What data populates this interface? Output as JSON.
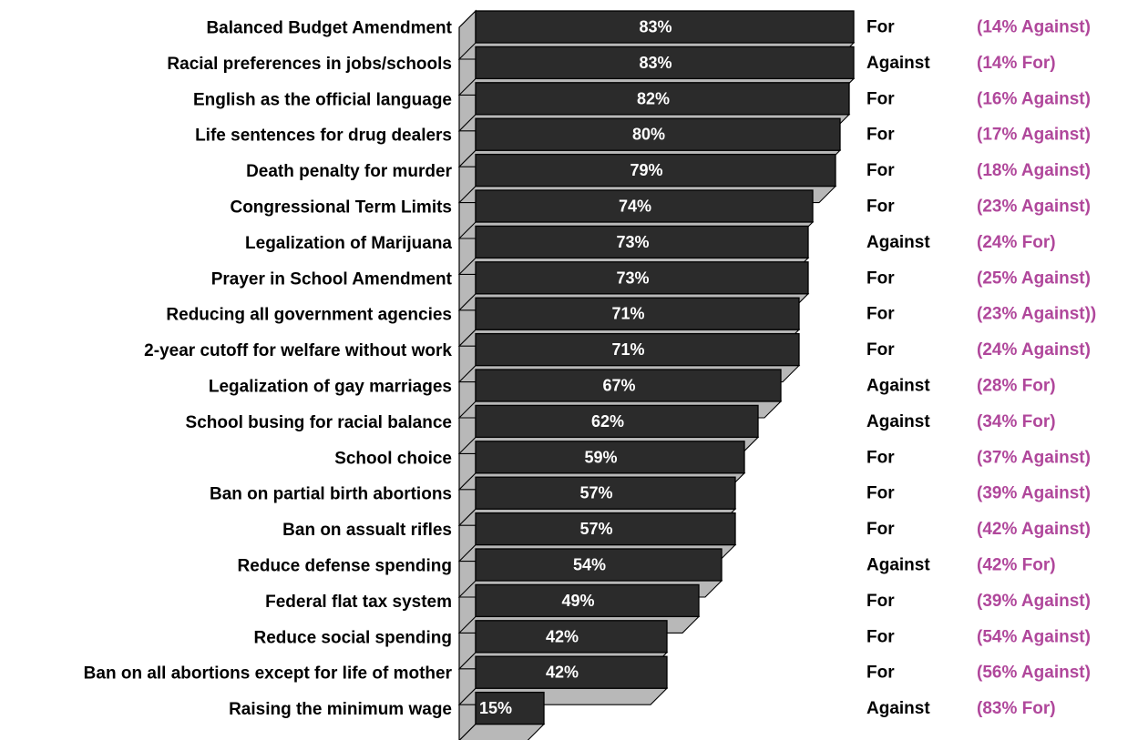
{
  "colors": {
    "bar_face": "#2b2b2b",
    "bar_depth": "#b8b8b8",
    "bar_outline": "#000000",
    "value_text": "#ffffff",
    "category_text": "#000000",
    "position_text": "#000000",
    "opposition_text": "#b0479b"
  },
  "chart_data": {
    "type": "bar",
    "orientation": "horizontal",
    "style": "3d",
    "grid": false,
    "xlim": [
      0,
      100
    ],
    "categories": [
      "Balanced Budget Amendment",
      "Racial preferences in jobs/schools",
      "English as the official language",
      "Life sentences for drug dealers",
      "Death penalty for murder",
      "Congressional Term Limits",
      "Legalization of Marijuana",
      "Prayer in School Amendment",
      "Reducing all government agencies",
      "2-year cutoff for welfare without work",
      "Legalization of gay marriages",
      "School busing for racial balance",
      "School choice",
      "Ban on partial birth abortions",
      "Ban on assualt rifles",
      "Reduce defense spending",
      "Federal flat tax system",
      "Reduce social spending",
      "Ban on all abortions except for life of mother",
      "Raising the minimum wage"
    ],
    "values": [
      83,
      83,
      82,
      80,
      79,
      74,
      73,
      73,
      71,
      71,
      67,
      62,
      59,
      57,
      57,
      54,
      49,
      42,
      42,
      15
    ],
    "value_labels": [
      "83%",
      "83%",
      "82%",
      "80%",
      "79%",
      "74%",
      "73%",
      "73%",
      "71%",
      "71%",
      "67%",
      "62%",
      "59%",
      "57%",
      "57%",
      "54%",
      "49%",
      "42%",
      "42%",
      "15%"
    ],
    "positions": [
      "For",
      "Against",
      "For",
      "For",
      "For",
      "For",
      "Against",
      "For",
      "For",
      "For",
      "Against",
      "Against",
      "For",
      "For",
      "For",
      "Against",
      "For",
      "For",
      "For",
      "Against"
    ],
    "opposition_labels": [
      "(14% Against)",
      "(14% For)",
      "(16% Against)",
      "(17% Against)",
      "(18% Against)",
      "(23% Against)",
      "(24% For)",
      "(25% Against)",
      "(23% Against))",
      "(24% Against)",
      "(28% For)",
      "(34% For)",
      "(37% Against)",
      "(39% Against)",
      "(42% Against)",
      "(42% For)",
      "(39% Against)",
      "(54% Against)",
      "(56% Against)",
      "(83% For)"
    ]
  }
}
